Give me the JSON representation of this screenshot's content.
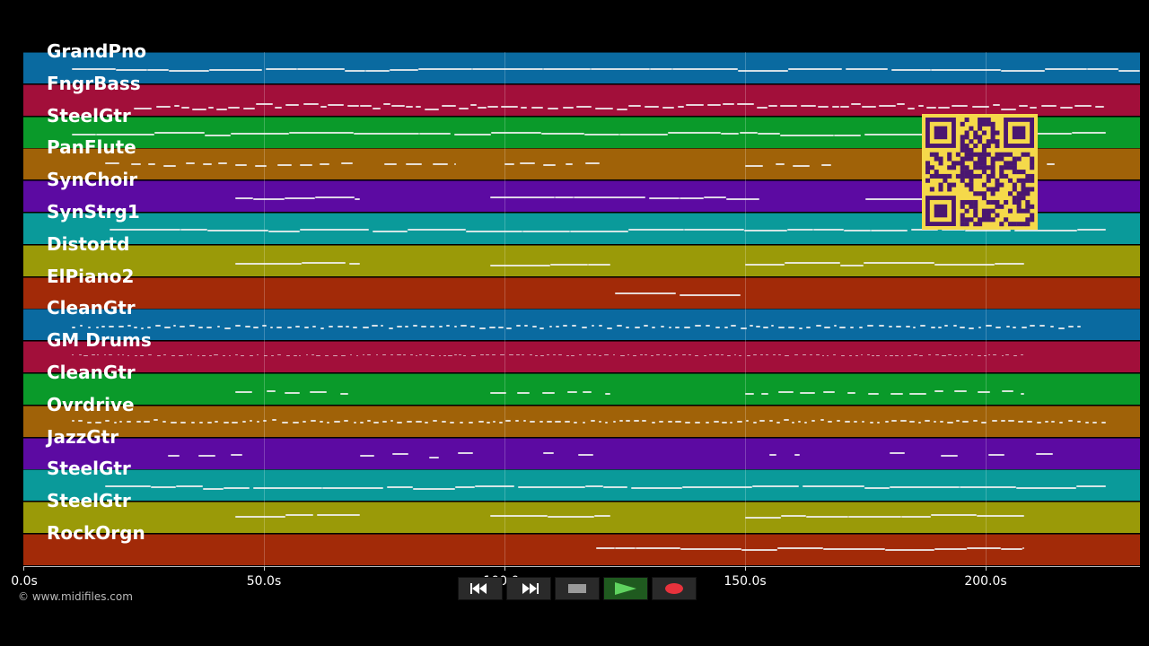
{
  "tracks": [
    {
      "name": "GrandPno",
      "color": "#0a6aa0"
    },
    {
      "name": "FngrBass",
      "color": "#a20f3a"
    },
    {
      "name": "SteelGtr",
      "color": "#0a9a2a"
    },
    {
      "name": "PanFlute",
      "color": "#a06208"
    },
    {
      "name": "SynChoir",
      "color": "#5c0aa2"
    },
    {
      "name": "SynStrg1",
      "color": "#0a9a9a"
    },
    {
      "name": "Distortd",
      "color": "#9a9a08"
    },
    {
      "name": "ElPiano2",
      "color": "#a22a08"
    },
    {
      "name": "CleanGtr",
      "color": "#0a6aa0"
    },
    {
      "name": "GM Drums",
      "color": "#a20f3a"
    },
    {
      "name": "CleanGtr",
      "color": "#0a9a2a"
    },
    {
      "name": "Ovrdrive",
      "color": "#a06208"
    },
    {
      "name": "JazzGtr",
      "color": "#5c0aa2"
    },
    {
      "name": "SteelGtr",
      "color": "#0a9a9a"
    },
    {
      "name": "SteelGtr",
      "color": "#9a9a08"
    },
    {
      "name": "RockOrgn",
      "color": "#a22a08"
    }
  ],
  "timeline": {
    "max_seconds": 232,
    "ticks": [
      {
        "value": 0,
        "label": "0.0s"
      },
      {
        "value": 50,
        "label": "50.0s"
      },
      {
        "value": 100,
        "label": "100.0s"
      },
      {
        "value": 150,
        "label": "150.0s"
      },
      {
        "value": 200,
        "label": "200.0s"
      }
    ]
  },
  "copyright": "© www.midifiles.com",
  "transport": {
    "rewind_icon": "rewind-icon",
    "forward_icon": "fast-forward-icon",
    "stop_icon": "stop-icon",
    "play_icon": "play-icon",
    "record_icon": "record-icon"
  },
  "qr_icon": "qr-code-icon"
}
